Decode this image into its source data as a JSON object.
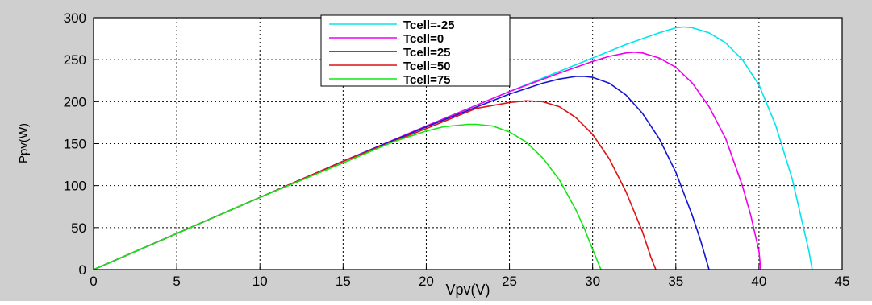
{
  "chart_data": {
    "type": "line",
    "xlabel": "Vpv(V)",
    "ylabel": "Ppv(W)",
    "xlim": [
      0,
      45
    ],
    "ylim": [
      0,
      300
    ],
    "xticks": [
      0,
      5,
      10,
      15,
      20,
      25,
      30,
      35,
      40,
      45
    ],
    "yticks": [
      0,
      50,
      100,
      150,
      200,
      250,
      300
    ],
    "xtick_labels": [
      "0",
      "5",
      "10",
      "15",
      "20",
      "25",
      "30",
      "35",
      "40",
      "45"
    ],
    "ytick_labels": [
      "0",
      "50",
      "100",
      "150",
      "200",
      "250",
      "300"
    ],
    "grid": true,
    "legend_position": "top-center",
    "series": [
      {
        "name": "Tcell=-25",
        "color": "#00e5ee",
        "x": [
          0,
          5,
          10,
          15,
          20,
          25,
          28,
          30,
          32,
          34,
          35,
          35.5,
          36,
          37,
          38,
          39,
          40,
          41,
          42,
          43,
          43.2
        ],
        "y": [
          0,
          43,
          86,
          129,
          171,
          212,
          236,
          252,
          268,
          282,
          288,
          289,
          288,
          282,
          270,
          250,
          220,
          172,
          108,
          22,
          0
        ]
      },
      {
        "name": "Tcell=0",
        "color": "#ee00ee",
        "x": [
          0,
          5,
          10,
          15,
          20,
          25,
          28,
          30,
          31,
          32,
          32.5,
          33,
          34,
          35,
          36,
          37,
          38,
          39,
          39.5,
          40,
          40.1
        ],
        "y": [
          0,
          43,
          86,
          129,
          171,
          212,
          234,
          248,
          254,
          258,
          259,
          258,
          252,
          241,
          222,
          194,
          156,
          100,
          65,
          22,
          0
        ]
      },
      {
        "name": "Tcell=25",
        "color": "#1414d2",
        "x": [
          0,
          5,
          10,
          15,
          20,
          25,
          27,
          28,
          29,
          29.5,
          30,
          31,
          32,
          33,
          34,
          35,
          36,
          36.5,
          37
        ],
        "y": [
          0,
          43,
          86,
          129,
          170,
          209,
          222,
          227,
          230,
          230,
          229,
          222,
          208,
          186,
          156,
          116,
          64,
          34,
          0
        ]
      },
      {
        "name": "Tcell=50",
        "color": "#dc1414",
        "x": [
          0,
          5,
          10,
          15,
          20,
          23,
          25,
          26,
          27,
          28,
          29,
          30,
          31,
          32,
          33,
          33.5,
          33.8
        ],
        "y": [
          0,
          43,
          86,
          129,
          168,
          192,
          199,
          201,
          200,
          194,
          181,
          161,
          132,
          93,
          45,
          15,
          0
        ]
      },
      {
        "name": "Tcell=75",
        "color": "#14e614",
        "x": [
          0,
          5,
          10,
          15,
          18,
          20,
          21,
          22,
          22.5,
          23,
          24,
          25,
          26,
          27,
          28,
          29,
          29.5,
          30,
          30.5
        ],
        "y": [
          0,
          43,
          86,
          127,
          152,
          165,
          170,
          172,
          173,
          173,
          171,
          164,
          152,
          133,
          107,
          71,
          49,
          24,
          0
        ]
      }
    ]
  }
}
